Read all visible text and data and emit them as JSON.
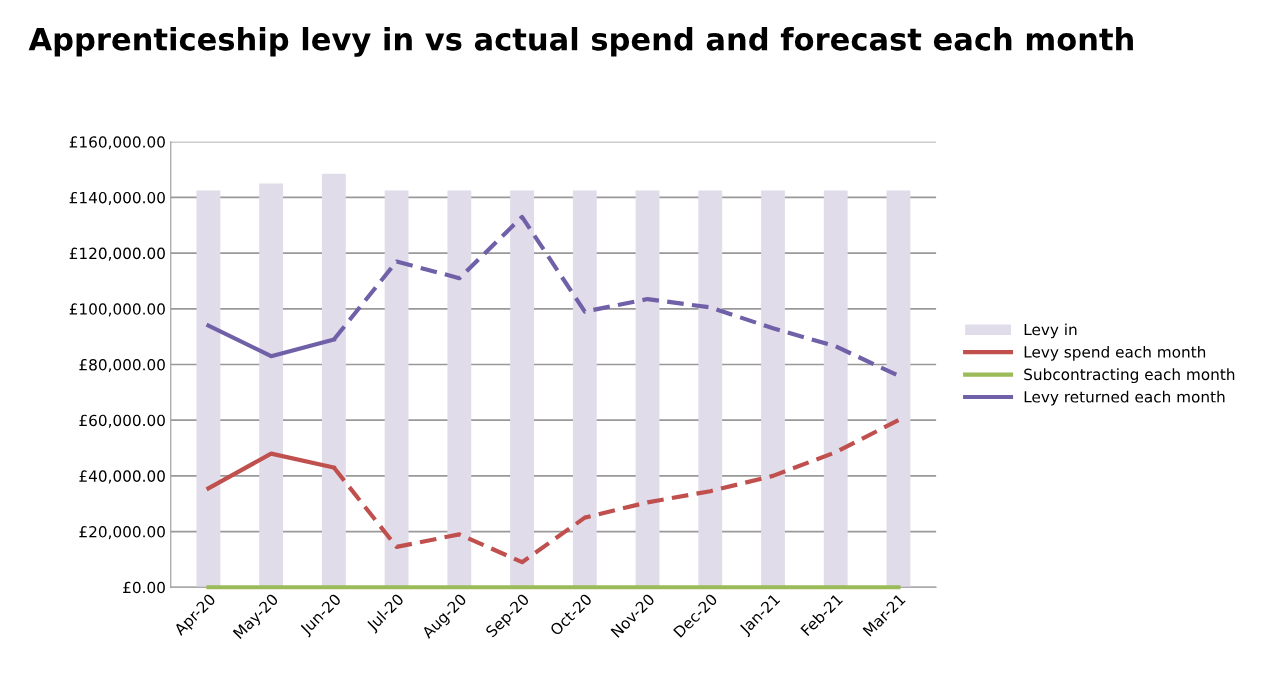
{
  "chart_data": {
    "type": "bar",
    "title": "Apprenticeship levy in vs actual spend and forecast each month",
    "categories": [
      "Apr-20",
      "May-20",
      "Jun-20",
      "Jul-20",
      "Aug-20",
      "Sep-20",
      "Oct-20",
      "Nov-20",
      "Dec-20",
      "Jan-21",
      "Feb-21",
      "Mar-21"
    ],
    "series": [
      {
        "name": "Levy in",
        "color": "#e0dcea",
        "values": [
          142500,
          145000,
          148500,
          142500,
          142500,
          142500,
          142500,
          142500,
          142500,
          142500,
          142500,
          142500
        ]
      },
      {
        "name": "Levy spend each month",
        "type": "line",
        "color": "#c0504d",
        "line_style": "solid",
        "values": [
          35500,
          48000,
          43000,
          null,
          null,
          null,
          null,
          null,
          null,
          null,
          null,
          null
        ]
      },
      {
        "type": "line",
        "color": "#c0504d",
        "line_style": "dashed",
        "values": [
          null,
          null,
          43000,
          14500,
          19000,
          9000,
          25000,
          30500,
          34500,
          40000,
          48500,
          60000
        ]
      },
      {
        "name": "Subcontracting each month",
        "type": "line",
        "color": "#9bbb59",
        "line_style": "solid",
        "values": [
          0,
          0,
          0,
          0,
          0,
          0,
          0,
          0,
          0,
          0,
          0,
          0
        ]
      },
      {
        "name": "Levy returned each month",
        "type": "line",
        "color": "#7060a8",
        "line_style": "solid",
        "values": [
          94000,
          83000,
          89000,
          null,
          null,
          null,
          null,
          null,
          null,
          null,
          null,
          null
        ]
      },
      {
        "type": "line",
        "color": "#7060a8",
        "line_style": "dashed",
        "values": [
          null,
          null,
          89000,
          117000,
          111000,
          133000,
          99000,
          103500,
          100500,
          93000,
          86500,
          76000
        ]
      }
    ],
    "ylim": [
      0,
      160000
    ],
    "yticks": [
      {
        "value": 0,
        "label": "£0.00"
      },
      {
        "value": 20000,
        "label": "£20,000.00"
      },
      {
        "value": 40000,
        "label": "£40,000.00"
      },
      {
        "value": 60000,
        "label": "£60,000.00"
      },
      {
        "value": 80000,
        "label": "£80,000.00"
      },
      {
        "value": 100000,
        "label": "£100,000.00"
      },
      {
        "value": 120000,
        "label": "£120,000.00"
      },
      {
        "value": 140000,
        "label": "£140,000.00"
      },
      {
        "value": 160000,
        "label": "£160,000.00"
      }
    ],
    "grid": "y",
    "legend": "right"
  }
}
